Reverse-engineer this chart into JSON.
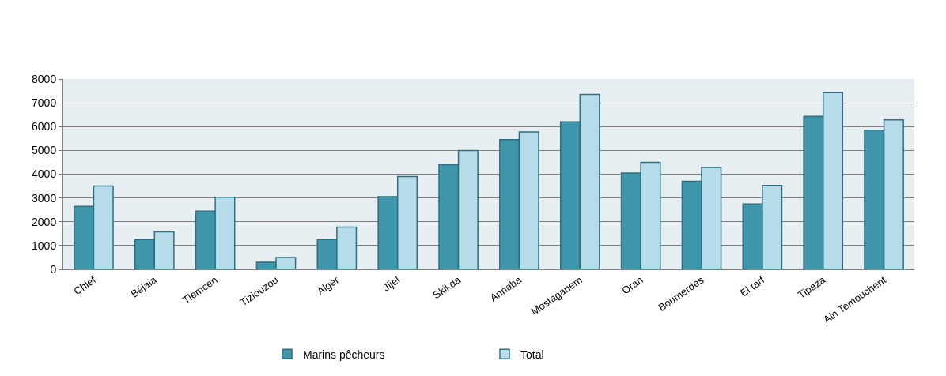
{
  "chart_data": {
    "type": "bar",
    "categories": [
      "Chlef",
      "Béjaia",
      "Tlemcen",
      "Tiziouzou",
      "Alger",
      "Jijel",
      "Skikda",
      "Annaba",
      "Mostaganem",
      "Oran",
      "Boumerdes",
      "El tarf",
      "Tipaza",
      "Ain Temouchent"
    ],
    "series": [
      {
        "name": "Marins pêcheurs",
        "color": "#3f96ab",
        "values": [
          2650,
          1250,
          2450,
          300,
          1250,
          3050,
          4400,
          5450,
          6200,
          4050,
          3700,
          2750,
          6430,
          5850
        ]
      },
      {
        "name": "Total",
        "color": "#b5dce8",
        "values": [
          3500,
          1580,
          3030,
          500,
          1780,
          3900,
          5000,
          5780,
          7350,
          4500,
          4280,
          3530,
          7430,
          6280
        ]
      }
    ],
    "ylim": [
      0,
      8000
    ],
    "yticks": [
      0,
      1000,
      2000,
      3000,
      4000,
      5000,
      6000,
      7000,
      8000
    ],
    "grid": "y",
    "legend": "bottom"
  }
}
